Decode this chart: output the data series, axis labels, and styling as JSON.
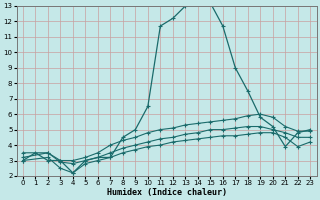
{
  "xlabel": "Humidex (Indice chaleur)",
  "xlim": [
    -0.5,
    23.5
  ],
  "ylim": [
    2,
    13
  ],
  "xticks": [
    0,
    1,
    2,
    3,
    4,
    5,
    6,
    7,
    8,
    9,
    10,
    11,
    12,
    13,
    14,
    15,
    16,
    17,
    18,
    19,
    20,
    21,
    22,
    23
  ],
  "yticks": [
    2,
    3,
    4,
    5,
    6,
    7,
    8,
    9,
    10,
    11,
    12,
    13
  ],
  "bg_color": "#c5e8e8",
  "grid_color": "#ddaaaa",
  "line_color": "#1a6b6b",
  "line1_x": [
    0,
    1,
    2,
    3,
    4,
    5,
    6,
    7,
    8,
    9,
    10,
    11,
    12,
    13,
    14,
    15,
    16,
    17,
    18,
    19,
    20,
    21,
    22,
    23
  ],
  "line1_y": [
    3.0,
    3.5,
    3.0,
    3.0,
    2.2,
    3.0,
    3.2,
    3.2,
    4.5,
    5.0,
    6.5,
    11.7,
    12.2,
    13.0,
    13.2,
    13.2,
    11.7,
    9.0,
    7.5,
    5.8,
    5.2,
    3.9,
    4.8,
    5.0
  ],
  "line2_x": [
    0,
    2,
    3,
    4,
    5,
    6,
    7,
    8,
    9,
    10,
    11,
    12,
    13,
    14,
    15,
    16,
    17,
    18,
    19,
    20,
    21,
    22,
    23
  ],
  "line2_y": [
    3.5,
    3.5,
    3.0,
    3.0,
    3.2,
    3.5,
    4.0,
    4.3,
    4.5,
    4.8,
    5.0,
    5.1,
    5.3,
    5.4,
    5.5,
    5.6,
    5.7,
    5.9,
    6.0,
    5.8,
    5.2,
    4.9,
    4.9
  ],
  "line3_x": [
    0,
    2,
    3,
    4,
    5,
    6,
    7,
    8,
    9,
    10,
    11,
    12,
    13,
    14,
    15,
    16,
    17,
    18,
    19,
    20,
    21,
    22,
    23
  ],
  "line3_y": [
    3.2,
    3.5,
    2.9,
    2.8,
    3.0,
    3.2,
    3.5,
    3.8,
    4.0,
    4.2,
    4.4,
    4.5,
    4.7,
    4.8,
    5.0,
    5.0,
    5.1,
    5.2,
    5.2,
    5.0,
    4.8,
    4.5,
    4.5
  ],
  "line4_x": [
    0,
    2,
    3,
    4,
    5,
    6,
    7,
    8,
    9,
    10,
    11,
    12,
    13,
    14,
    15,
    16,
    17,
    18,
    19,
    20,
    21,
    22,
    23
  ],
  "line4_y": [
    3.0,
    3.2,
    2.5,
    2.2,
    2.8,
    3.0,
    3.2,
    3.5,
    3.7,
    3.9,
    4.0,
    4.2,
    4.3,
    4.4,
    4.5,
    4.6,
    4.6,
    4.7,
    4.8,
    4.8,
    4.5,
    3.9,
    4.2
  ]
}
